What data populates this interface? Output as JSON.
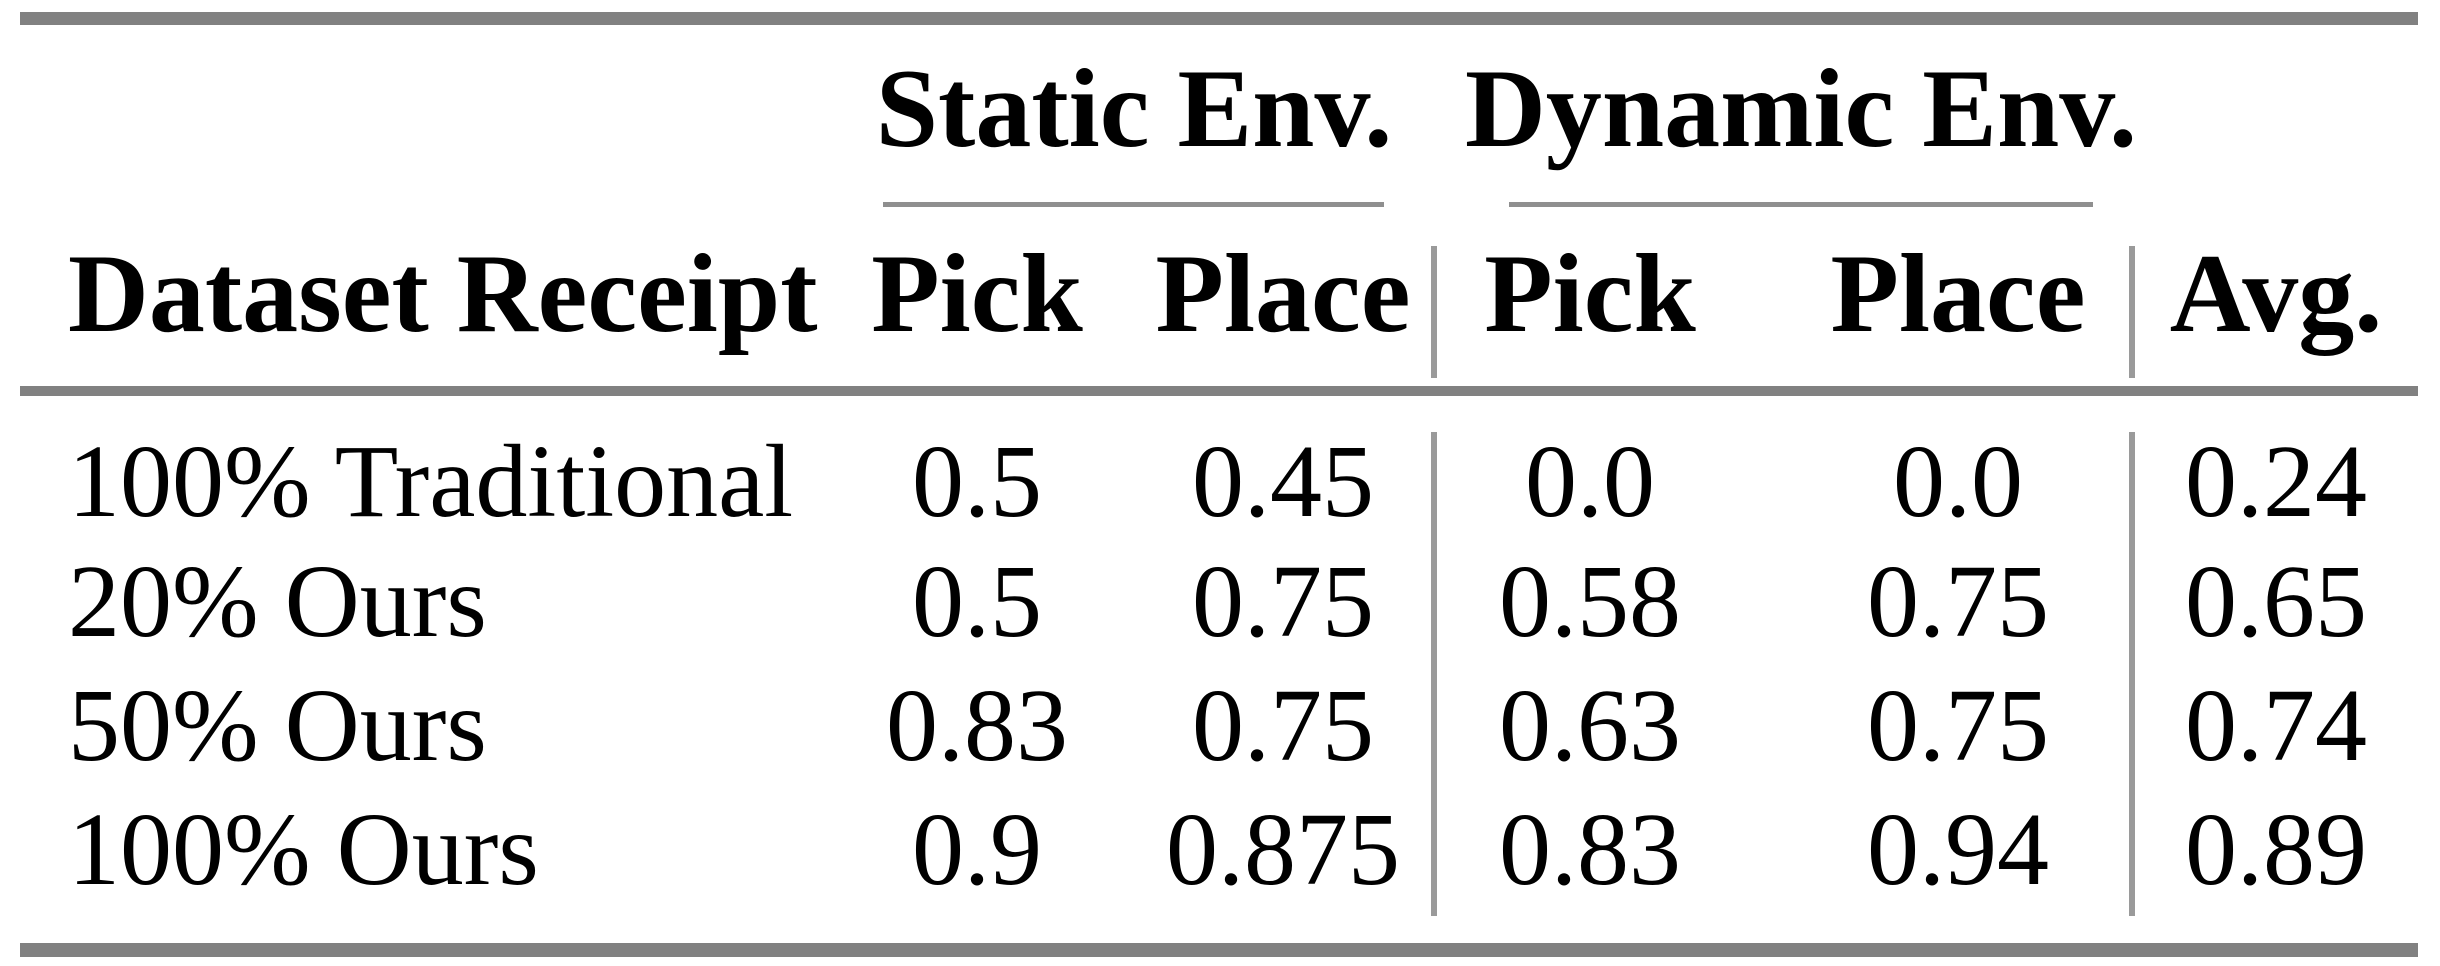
{
  "table": {
    "group_headers": {
      "static": "Static Env.",
      "dynamic": "Dynamic Env."
    },
    "columns": {
      "dataset": "Dataset Receipt",
      "static_pick": "Pick",
      "static_place": "Place",
      "dynamic_pick": "Pick",
      "dynamic_place": "Place",
      "avg": "Avg."
    },
    "rows": [
      {
        "label": "100% Traditional",
        "static_pick": "0.5",
        "static_place": "0.45",
        "dynamic_pick": "0.0",
        "dynamic_place": "0.0",
        "avg": "0.24"
      },
      {
        "label": "20% Ours",
        "static_pick": "0.5",
        "static_place": "0.75",
        "dynamic_pick": "0.58",
        "dynamic_place": "0.75",
        "avg": "0.65"
      },
      {
        "label": "50% Ours",
        "static_pick": "0.83",
        "static_place": "0.75",
        "dynamic_pick": "0.63",
        "dynamic_place": "0.75",
        "avg": "0.74"
      },
      {
        "label": "100% Ours",
        "static_pick": "0.9",
        "static_place": "0.875",
        "dynamic_pick": "0.83",
        "dynamic_place": "0.94",
        "avg": "0.89"
      }
    ],
    "colors": {
      "thick_rule": "#818181",
      "thin_rule": "#8f8f8f",
      "vertical_rule": "#9a9a9a",
      "text": "#000000",
      "background": "#ffffff"
    }
  }
}
